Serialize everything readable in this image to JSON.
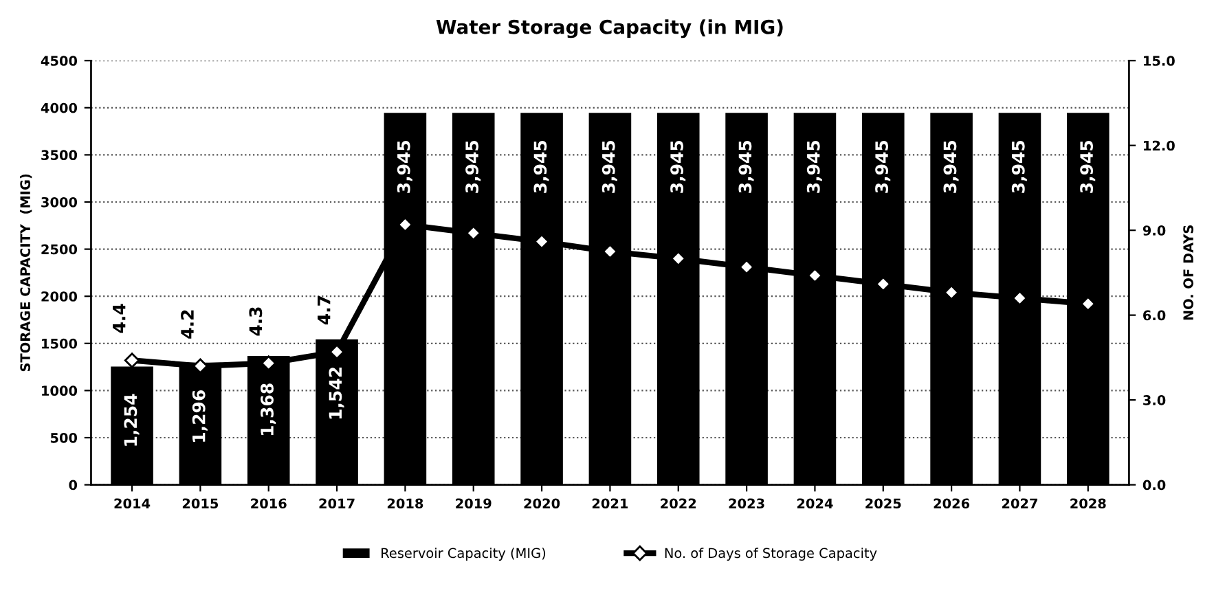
{
  "chart_data": {
    "type": "bar",
    "title": "Water Storage Capacity (in MIG)",
    "ylabel": "STORAGE CAPACITY  (MIG)",
    "y2label": "NO. OF DAYS",
    "categories": [
      "2014",
      "2015",
      "2016",
      "2017",
      "2018",
      "2019",
      "2020",
      "2021",
      "2022",
      "2023",
      "2024",
      "2025",
      "2026",
      "2027",
      "2028"
    ],
    "series": [
      {
        "name": "Reservoir Capacity (MIG)",
        "type": "bar",
        "color": "#000000",
        "values": [
          1254,
          1296,
          1368,
          1542,
          3945,
          3945,
          3945,
          3945,
          3945,
          3945,
          3945,
          3945,
          3945,
          3945,
          3945
        ],
        "value_labels": [
          "1,254",
          "1,296",
          "1,368",
          "1,542",
          "3,945",
          "3,945",
          "3,945",
          "3,945",
          "3,945",
          "3,945",
          "3,945",
          "3,945",
          "3,945",
          "3,945",
          "3,945"
        ]
      },
      {
        "name": "No. of Days of Storage Capacity",
        "type": "line",
        "axis": "y2",
        "color": "#000000",
        "marker": "diamond",
        "values": [
          4.4,
          4.2,
          4.3,
          4.7,
          9.2,
          8.9,
          8.6,
          8.25,
          8.0,
          7.7,
          7.4,
          7.1,
          6.8,
          6.6,
          6.4
        ],
        "value_labels": [
          "4.4",
          "4.2",
          "4.3",
          "4.7",
          null,
          null,
          null,
          null,
          null,
          null,
          null,
          null,
          null,
          null,
          null
        ]
      }
    ],
    "ylim": [
      0,
      4500
    ],
    "yticks": [
      0,
      500,
      1000,
      1500,
      2000,
      2500,
      3000,
      3500,
      4000,
      4500
    ],
    "y2lim": [
      0,
      15
    ],
    "y2ticks": [
      {
        "value": 0,
        "label": "0.0"
      },
      {
        "value": 3,
        "label": "3.0"
      },
      {
        "value": 6,
        "label": "6.0"
      },
      {
        "value": 9,
        "label": "9.0"
      },
      {
        "value": 12,
        "label": "12.0"
      },
      {
        "value": 15,
        "label": "15.0"
      }
    ],
    "grid": "y",
    "legend": "bottom"
  }
}
